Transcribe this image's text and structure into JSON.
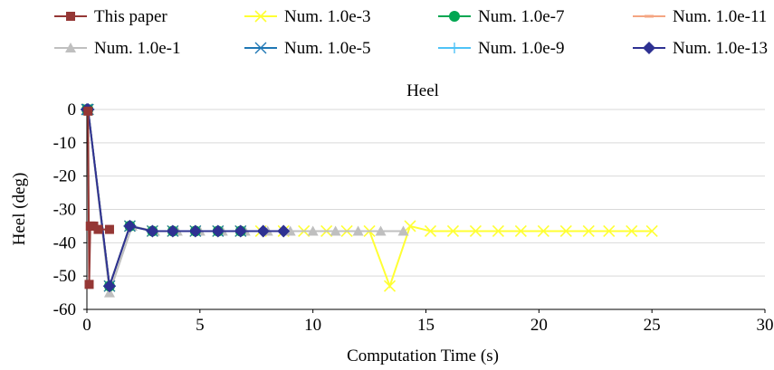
{
  "chart_data": {
    "type": "line",
    "title": "Heel",
    "xlabel": "Computation Time (s)",
    "ylabel": "Heel (deg)",
    "xlim": [
      0,
      30
    ],
    "ylim": [
      -60,
      0
    ],
    "xticks": [
      0,
      5,
      10,
      15,
      20,
      25,
      30
    ],
    "yticks": [
      0,
      -10,
      -20,
      -30,
      -40,
      -50,
      -60
    ],
    "legend_position": "top",
    "series": [
      {
        "name": "This paper",
        "color": "#953735",
        "marker": "square",
        "x": [
          0.05,
          0.1,
          0.15,
          0.2,
          0.3,
          0.5,
          1.0
        ],
        "y": [
          -0.5,
          -52.5,
          -35,
          -35,
          -35,
          -36,
          -36
        ]
      },
      {
        "name": "Num. 1.0e-1",
        "color": "#bfbfbf",
        "marker": "triangle",
        "x": [
          0,
          0.05,
          1.0,
          2.0,
          3.0,
          4.0,
          5.0,
          6.0,
          7.0,
          8.0,
          9.0,
          10.0,
          11.0,
          12.0,
          13.0,
          14.0
        ],
        "y": [
          0,
          0,
          -55,
          -35,
          -36.5,
          -36.5,
          -36.5,
          -36.5,
          -36.5,
          -36.5,
          -36.5,
          -36.5,
          -36.5,
          -36.5,
          -36.5,
          -36.5
        ]
      },
      {
        "name": "Num. 1.0e-3",
        "color": "#ffff33",
        "marker": "x",
        "x": [
          0,
          0.05,
          1.0,
          1.9,
          2.9,
          3.8,
          4.8,
          5.8,
          6.8,
          7.7,
          8.7,
          9.6,
          10.6,
          11.5,
          12.5,
          13.4,
          14.3,
          15.2,
          16.2,
          17.2,
          18.2,
          19.2,
          20.2,
          21.2,
          22.2,
          23.1,
          24.1,
          25.0
        ],
        "y": [
          0,
          0,
          -53,
          -35,
          -36.5,
          -36.5,
          -36.5,
          -36.5,
          -36.5,
          -36.5,
          -36.5,
          -36.5,
          -36.5,
          -36.5,
          -36.5,
          -53,
          -35,
          -36.5,
          -36.5,
          -36.5,
          -36.5,
          -36.5,
          -36.5,
          -36.5,
          -36.5,
          -36.5,
          -36.5,
          -36.5
        ]
      },
      {
        "name": "Num. 1.0e-5",
        "color": "#1f77b4",
        "marker": "star",
        "x": [
          0,
          0.05,
          1.0,
          1.9,
          2.9,
          3.8,
          4.8,
          5.8,
          6.8
        ],
        "y": [
          0,
          0,
          -53,
          -35,
          -36.5,
          -36.5,
          -36.5,
          -36.5,
          -36.5
        ]
      },
      {
        "name": "Num. 1.0e-7",
        "color": "#00a651",
        "marker": "circle",
        "x": [
          0,
          0.05,
          1.0,
          1.9,
          2.9,
          3.8,
          4.8,
          5.8,
          6.8
        ],
        "y": [
          0,
          0,
          -53,
          -35,
          -36.5,
          -36.5,
          -36.5,
          -36.5,
          -36.5
        ]
      },
      {
        "name": "Num. 1.0e-9",
        "color": "#4fc3f7",
        "marker": "plus",
        "x": [
          0,
          0.05,
          1.0,
          1.9,
          2.9,
          3.8,
          4.8,
          5.8,
          6.8,
          7.8,
          8.7
        ],
        "y": [
          0,
          0,
          -53,
          -35,
          -36.5,
          -36.5,
          -36.5,
          -36.5,
          -36.5,
          -36.5,
          -36.5
        ]
      },
      {
        "name": "Num. 1.0e-11",
        "color": "#f4a582",
        "marker": "dash",
        "x": [
          0,
          0.05,
          1.0,
          1.9,
          2.9,
          3.8,
          4.8,
          5.8,
          6.8,
          7.8,
          8.7
        ],
        "y": [
          0,
          0,
          -53,
          -35,
          -36.5,
          -36.5,
          -36.5,
          -36.5,
          -36.5,
          -36.5,
          -36.5
        ]
      },
      {
        "name": "Num. 1.0e-13",
        "color": "#2e3192",
        "marker": "diamond",
        "x": [
          0,
          0.05,
          1.0,
          1.9,
          2.9,
          3.8,
          4.8,
          5.8,
          6.8,
          7.8,
          8.7
        ],
        "y": [
          0,
          0,
          -53,
          -35,
          -36.5,
          -36.5,
          -36.5,
          -36.5,
          -36.5,
          -36.5,
          -36.5
        ]
      }
    ]
  }
}
